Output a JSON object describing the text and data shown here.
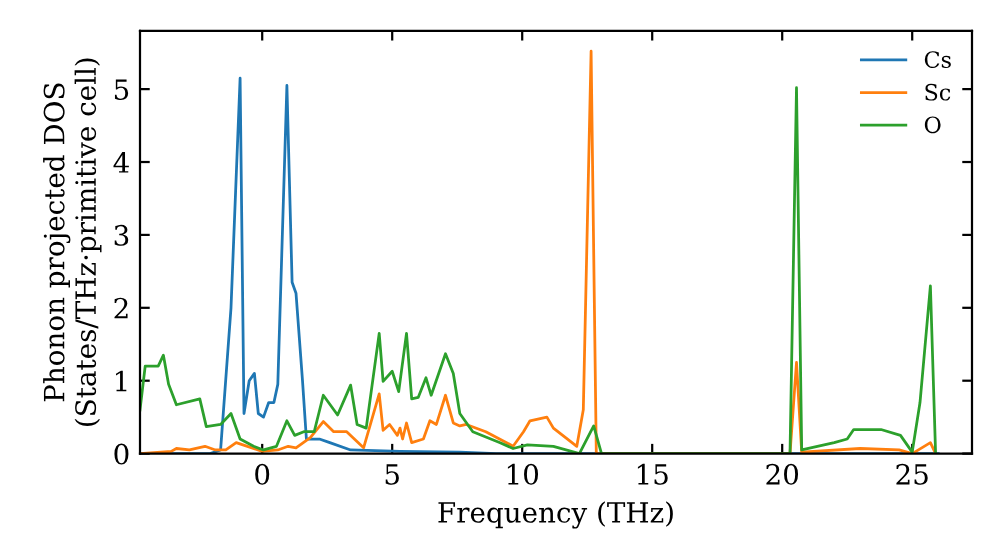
{
  "chart_data": {
    "type": "line",
    "xlabel": "Frequency (THz)",
    "ylabel": "Phonon projected DOS\n(States/THz·primitive cell)",
    "xlim": [
      -4.7,
      27.3
    ],
    "ylim": [
      0,
      5.8
    ],
    "xticks": [
      0,
      5,
      10,
      15,
      20,
      25
    ],
    "yticks": [
      0,
      1,
      2,
      3,
      4,
      5
    ],
    "legend": "top right",
    "grid": false,
    "line_style": "solid",
    "marker": "none",
    "series": [
      {
        "name": "Cs",
        "color": "#1f77b4",
        "x": [
          -4.7,
          -2.0,
          -1.6,
          -1.2,
          -0.85,
          -0.7,
          -0.5,
          -0.3,
          -0.15,
          0.05,
          0.25,
          0.45,
          0.6,
          0.95,
          1.15,
          1.3,
          1.55,
          1.7,
          2.2,
          2.6,
          3.4,
          5.3,
          7.6,
          9.0,
          26.0
        ],
        "values": [
          0,
          0,
          0.05,
          2.0,
          5.15,
          0.55,
          1.0,
          1.1,
          0.55,
          0.5,
          0.7,
          0.7,
          0.95,
          5.05,
          2.35,
          2.2,
          1.0,
          0.2,
          0.2,
          0.15,
          0.05,
          0.03,
          0.02,
          0,
          0
        ]
      },
      {
        "name": "Sc",
        "color": "#ff7f0e",
        "x": [
          -4.7,
          -3.5,
          -3.3,
          -2.8,
          -2.2,
          -1.8,
          -1.4,
          -1.0,
          0.0,
          0.6,
          1.0,
          1.3,
          1.85,
          2.35,
          2.75,
          3.25,
          3.9,
          4.5,
          4.65,
          4.9,
          5.2,
          5.3,
          5.4,
          5.55,
          5.75,
          6.2,
          6.45,
          6.7,
          7.05,
          7.35,
          7.6,
          7.85,
          8.6,
          9.4,
          9.65,
          10.05,
          10.3,
          10.95,
          11.2,
          12.1,
          12.35,
          12.65,
          12.85,
          20.3,
          20.55,
          20.75,
          23.0,
          24.5,
          25.0,
          25.7,
          25.9
        ],
        "values": [
          0,
          0.03,
          0.07,
          0.05,
          0.1,
          0.05,
          0.05,
          0.15,
          0.03,
          0.05,
          0.1,
          0.08,
          0.22,
          0.44,
          0.3,
          0.3,
          0.08,
          0.82,
          0.32,
          0.4,
          0.25,
          0.35,
          0.2,
          0.42,
          0.15,
          0.2,
          0.45,
          0.4,
          0.8,
          0.42,
          0.38,
          0.4,
          0.3,
          0.15,
          0.1,
          0.3,
          0.45,
          0.5,
          0.35,
          0.1,
          0.6,
          5.52,
          0,
          0,
          1.25,
          0.02,
          0.07,
          0.05,
          0,
          0.15,
          0
        ]
      },
      {
        "name": "O",
        "color": "#2ca02c",
        "x": [
          -4.7,
          -4.5,
          -4.0,
          -3.8,
          -3.6,
          -3.3,
          -2.4,
          -2.15,
          -1.6,
          -1.2,
          -0.85,
          -0.33,
          0.05,
          0.55,
          0.95,
          1.25,
          1.6,
          2.0,
          2.35,
          2.9,
          3.4,
          3.65,
          4.0,
          4.5,
          4.65,
          5.0,
          5.25,
          5.55,
          5.75,
          6.0,
          6.3,
          6.5,
          7.05,
          7.35,
          7.6,
          8.1,
          9.15,
          9.65,
          10.2,
          11.2,
          12.2,
          12.75,
          13.05,
          20.3,
          20.55,
          20.75,
          22.0,
          22.5,
          22.75,
          23.8,
          24.55,
          25.0,
          25.3,
          25.7,
          25.9
        ],
        "values": [
          0.6,
          1.2,
          1.2,
          1.35,
          0.95,
          0.67,
          0.75,
          0.37,
          0.4,
          0.55,
          0.2,
          0.1,
          0.05,
          0.1,
          0.45,
          0.25,
          0.3,
          0.3,
          0.8,
          0.53,
          0.94,
          0.4,
          0.35,
          1.65,
          0.99,
          1.13,
          0.85,
          1.65,
          0.75,
          0.77,
          1.04,
          0.8,
          1.37,
          1.1,
          0.55,
          0.3,
          0.15,
          0.07,
          0.12,
          0.1,
          0,
          0.38,
          0,
          0,
          5.02,
          0.05,
          0.15,
          0.2,
          0.33,
          0.33,
          0.25,
          0.02,
          0.7,
          2.3,
          0
        ]
      }
    ]
  }
}
